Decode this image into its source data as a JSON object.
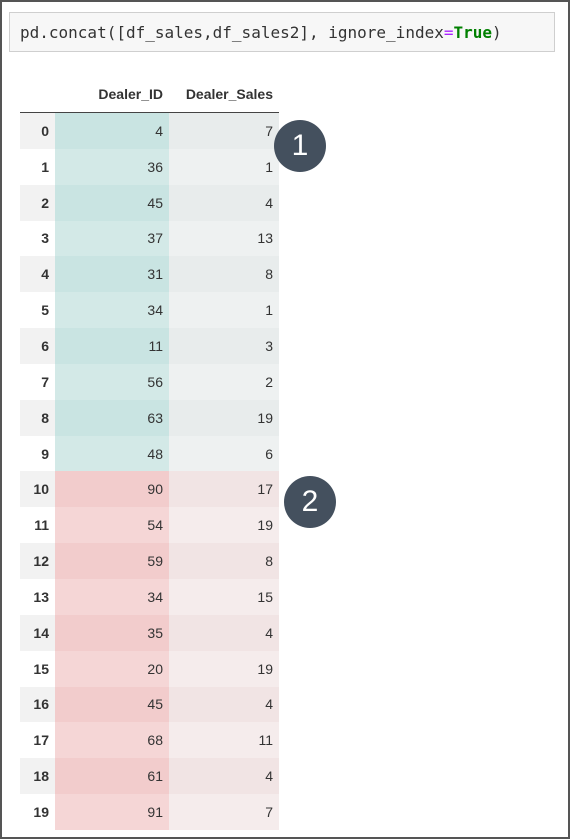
{
  "code": {
    "prefix": "pd.concat([df_sales,df_sales2], ignore_index",
    "operator": "=",
    "keyword": "True",
    "suffix": ")"
  },
  "table": {
    "columns": [
      "Dealer_ID",
      "Dealer_Sales"
    ],
    "rows": [
      {
        "index": "0",
        "dealer_id": "4",
        "dealer_sales": "7"
      },
      {
        "index": "1",
        "dealer_id": "36",
        "dealer_sales": "1"
      },
      {
        "index": "2",
        "dealer_id": "45",
        "dealer_sales": "4"
      },
      {
        "index": "3",
        "dealer_id": "37",
        "dealer_sales": "13"
      },
      {
        "index": "4",
        "dealer_id": "31",
        "dealer_sales": "8"
      },
      {
        "index": "5",
        "dealer_id": "34",
        "dealer_sales": "1"
      },
      {
        "index": "6",
        "dealer_id": "11",
        "dealer_sales": "3"
      },
      {
        "index": "7",
        "dealer_id": "56",
        "dealer_sales": "2"
      },
      {
        "index": "8",
        "dealer_id": "63",
        "dealer_sales": "19"
      },
      {
        "index": "9",
        "dealer_id": "48",
        "dealer_sales": "6"
      },
      {
        "index": "10",
        "dealer_id": "90",
        "dealer_sales": "17"
      },
      {
        "index": "11",
        "dealer_id": "54",
        "dealer_sales": "19"
      },
      {
        "index": "12",
        "dealer_id": "59",
        "dealer_sales": "8"
      },
      {
        "index": "13",
        "dealer_id": "34",
        "dealer_sales": "15"
      },
      {
        "index": "14",
        "dealer_id": "35",
        "dealer_sales": "4"
      },
      {
        "index": "15",
        "dealer_id": "20",
        "dealer_sales": "19"
      },
      {
        "index": "16",
        "dealer_id": "45",
        "dealer_sales": "4"
      },
      {
        "index": "17",
        "dealer_id": "68",
        "dealer_sales": "11"
      },
      {
        "index": "18",
        "dealer_id": "61",
        "dealer_sales": "4"
      },
      {
        "index": "19",
        "dealer_id": "91",
        "dealer_sales": "7"
      }
    ]
  },
  "badges": [
    "1",
    "2"
  ],
  "colors": {
    "group1_highlight": "#c9e4e2",
    "group2_highlight": "#f2cccc",
    "badge": "#44505e"
  }
}
